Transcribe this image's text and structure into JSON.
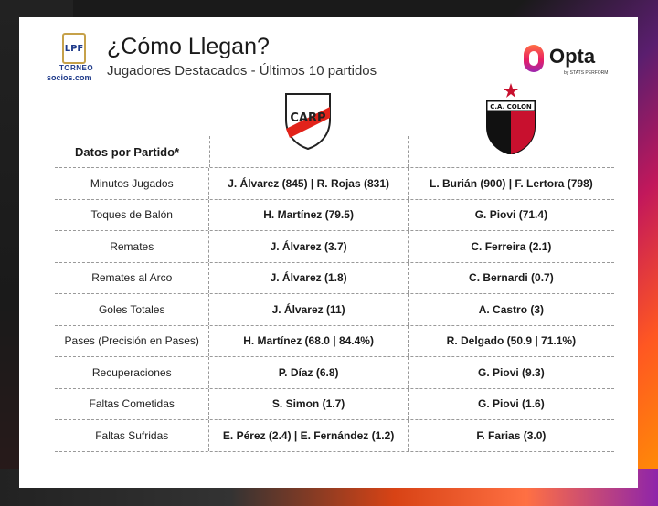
{
  "header": {
    "title": "¿Cómo Llegan?",
    "subtitle": "Jugadores Destacados - Últimos 10 partidos"
  },
  "league_logo": {
    "box_text": "LPF",
    "torneo": "TORNEO",
    "socios": "socios.com"
  },
  "opta_logo": {
    "name": "Opta",
    "sub": "by STATS PERFORM"
  },
  "crests": {
    "team_a": "CARP",
    "team_b": "C.A. COLON"
  },
  "table": {
    "label_header": "Datos por Partido*",
    "rows": [
      {
        "label": "Minutos Jugados",
        "team_a": "J. Álvarez (845) | R. Rojas (831)",
        "team_b": "L. Burián (900) | F. Lertora (798)"
      },
      {
        "label": "Toques de Balón",
        "team_a": "H. Martínez (79.5)",
        "team_b": "G. Piovi (71.4)"
      },
      {
        "label": "Remates",
        "team_a": "J. Álvarez (3.7)",
        "team_b": "C. Ferreira (2.1)"
      },
      {
        "label": "Remates al Arco",
        "team_a": "J. Álvarez (1.8)",
        "team_b": "C. Bernardi (0.7)"
      },
      {
        "label": "Goles Totales",
        "team_a": "J. Álvarez (11)",
        "team_b": "A. Castro (3)"
      },
      {
        "label": "Pases (Precisión en Pases)",
        "team_a": "H. Martínez (68.0 | 84.4%)",
        "team_b": "R. Delgado (50.9 | 71.1%)"
      },
      {
        "label": "Recuperaciones",
        "team_a": "P. Díaz (6.8)",
        "team_b": "G. Piovi (9.3)"
      },
      {
        "label": "Faltas Cometidas",
        "team_a": "S. Simon (1.7)",
        "team_b": "G. Piovi (1.6)"
      },
      {
        "label": "Faltas Sufridas",
        "team_a": "E. Pérez (2.4) | E. Fernández (1.2)",
        "team_b": "F. Farias (3.0)"
      }
    ]
  }
}
